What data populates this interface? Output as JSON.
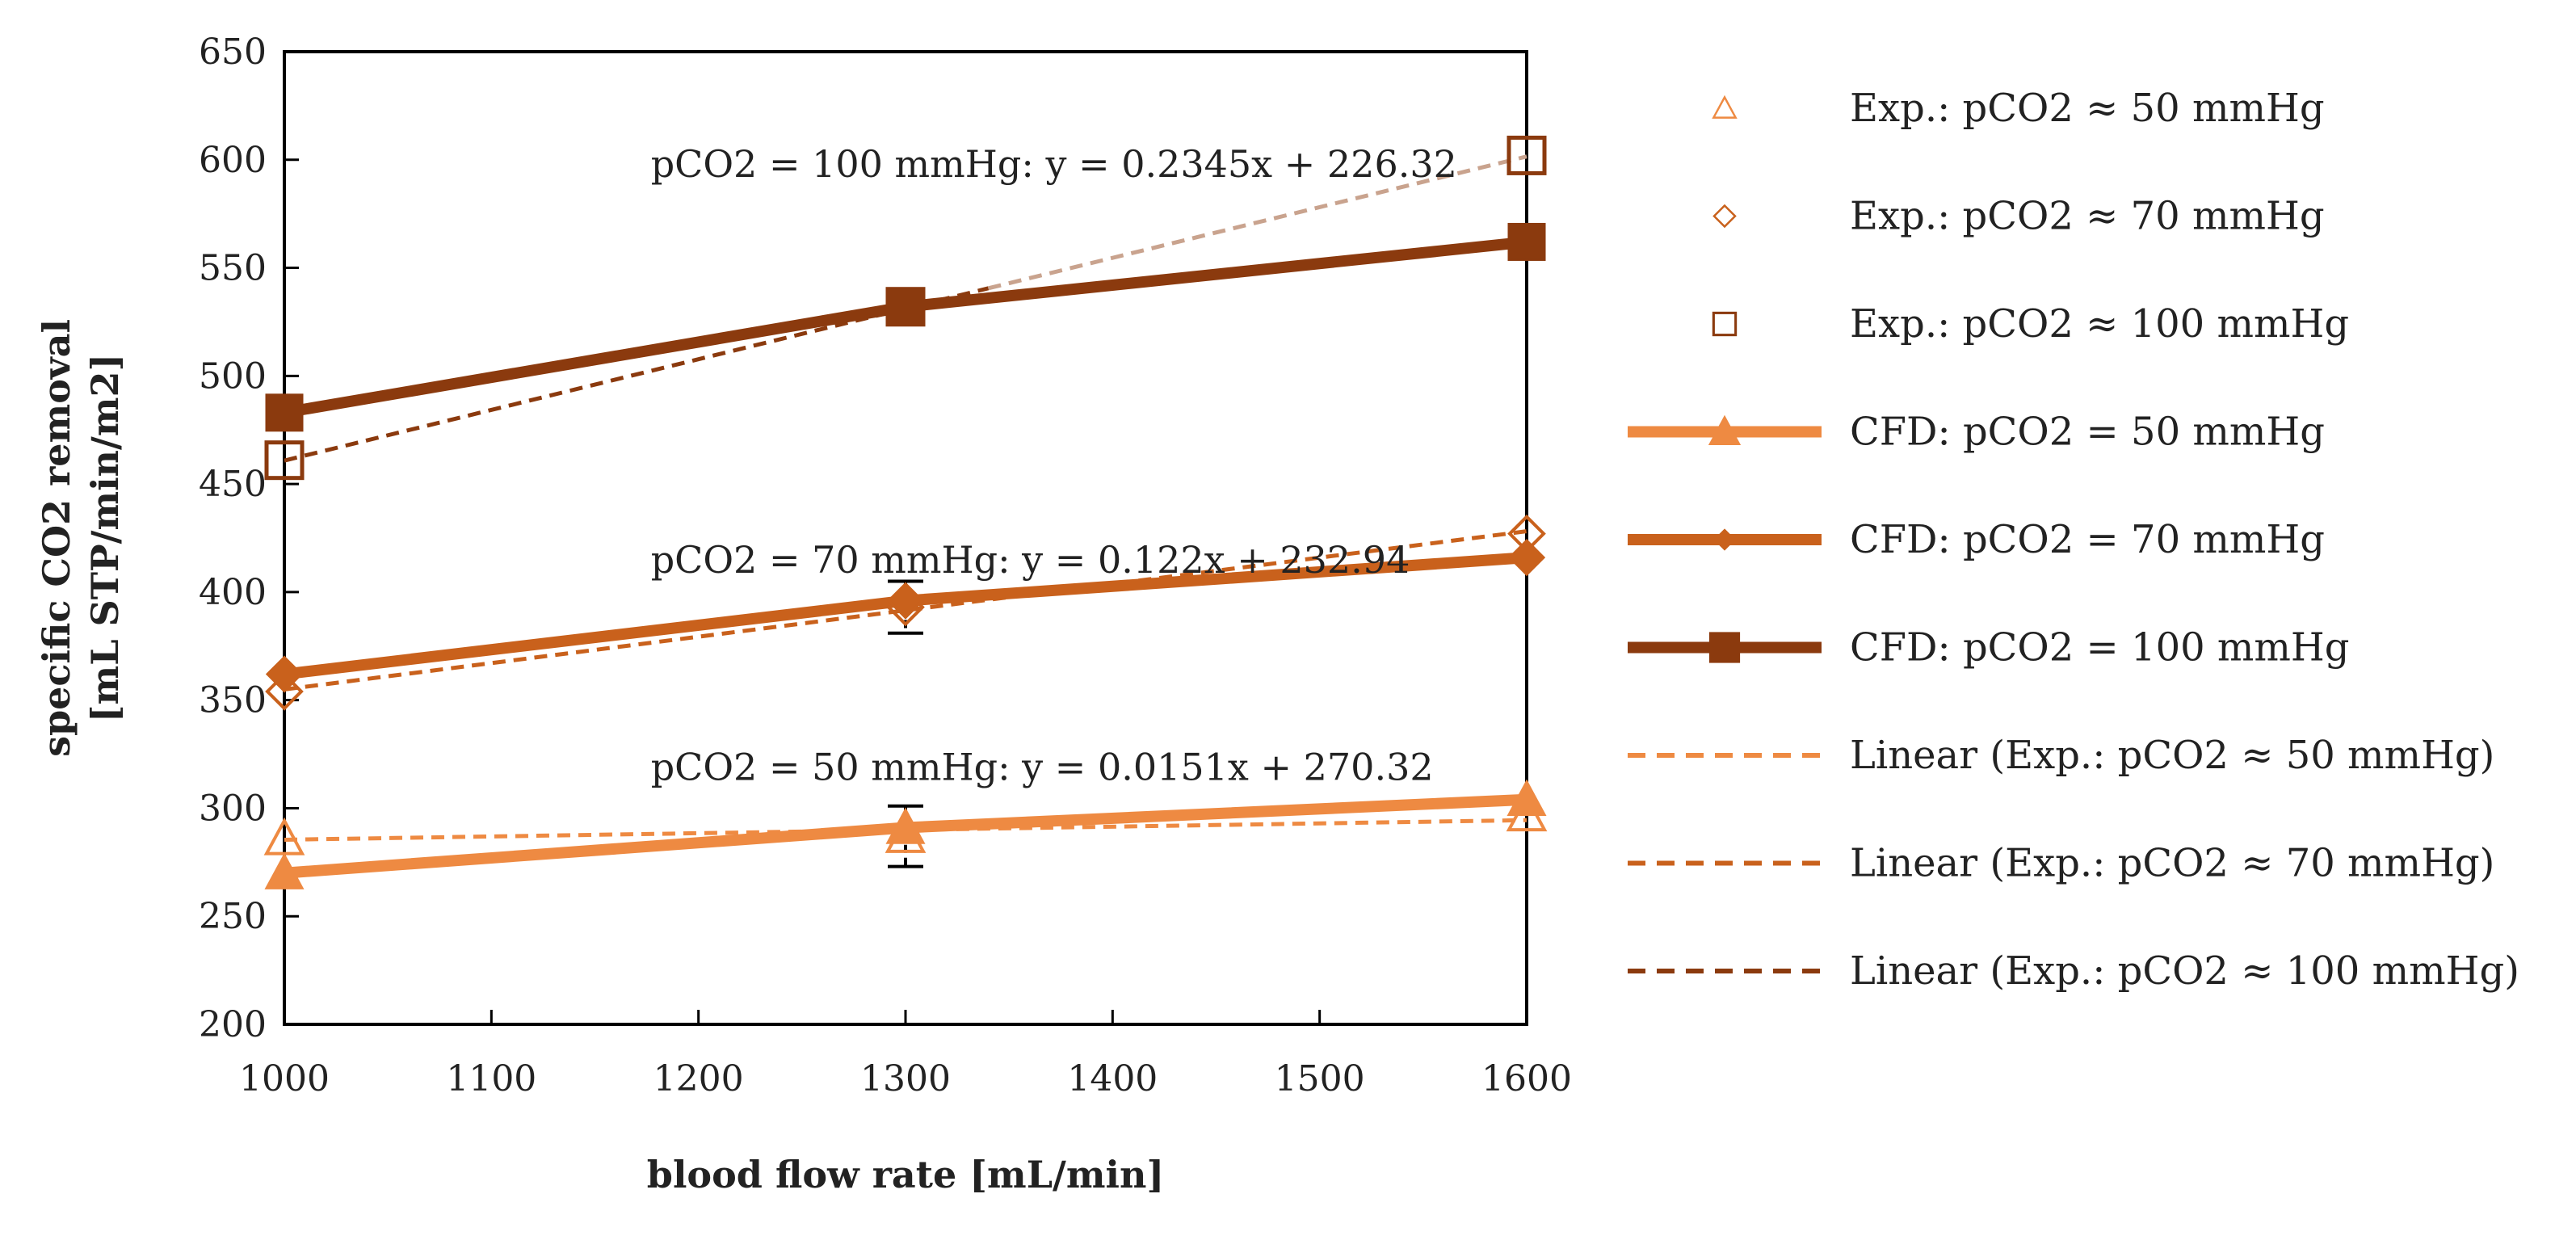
{
  "chart_data": {
    "type": "line",
    "xlabel": "blood flow rate [mL/min]",
    "ylabel_lines": [
      "specific CO2 removal",
      "[mL STP/min/m2]"
    ],
    "xlim": [
      1000,
      1600
    ],
    "ylim": [
      200,
      650
    ],
    "x_ticks": [
      "1000",
      "1100",
      "1200",
      "1300",
      "1400",
      "1500",
      "1600"
    ],
    "y_ticks": [
      "200",
      "250",
      "300",
      "350",
      "400",
      "450",
      "500",
      "550",
      "600",
      "650"
    ],
    "grid": false,
    "legend_position": "right",
    "colors": {
      "p50": "#EE8A42",
      "p70": "#C9611C",
      "p100": "#8B3A0E",
      "trend100_light": "#C9A38E"
    },
    "series": [
      {
        "name": "Exp.: pCO2 ≈ 50 mmHg",
        "kind": "exp",
        "marker": "triangle-open",
        "color": "#EE8A42",
        "x": [
          1000,
          1300,
          1600
        ],
        "y": [
          286,
          287,
          297
        ],
        "error": [
          0,
          14,
          0
        ]
      },
      {
        "name": "Exp.:  pCO2 ≈ 70 mmHg",
        "kind": "exp",
        "marker": "diamond-open",
        "color": "#C9611C",
        "x": [
          1000,
          1300,
          1600
        ],
        "y": [
          354,
          393,
          427
        ],
        "error": [
          0,
          12,
          0
        ]
      },
      {
        "name": "Exp.:  pCO2 ≈ 100 mmHg",
        "kind": "exp",
        "marker": "square-open",
        "color": "#8B3A0E",
        "x": [
          1000,
          1300,
          1600
        ],
        "y": [
          461,
          532,
          602
        ],
        "error": [
          0,
          8,
          0
        ]
      },
      {
        "name": "CFD: pCO2 = 50 mmHg",
        "kind": "cfd",
        "marker": "triangle",
        "color": "#EE8A42",
        "x": [
          1000,
          1300,
          1600
        ],
        "y": [
          270,
          291,
          304
        ]
      },
      {
        "name": "CFD: pCO2 = 70 mmHg",
        "kind": "cfd",
        "marker": "diamond",
        "color": "#C9611C",
        "x": [
          1000,
          1300,
          1600
        ],
        "y": [
          362,
          396,
          416
        ]
      },
      {
        "name": "CFD: pCO2 = 100 mmHg",
        "kind": "cfd",
        "marker": "square",
        "color": "#8B3A0E",
        "x": [
          1000,
          1300,
          1600
        ],
        "y": [
          483,
          532,
          562
        ]
      },
      {
        "name": "Linear (Exp.: pCO2 ≈ 50 mmHg)",
        "kind": "trend",
        "color": "#EE8A42",
        "x": [
          1000,
          1600
        ],
        "y": [
          285.42,
          294.48
        ]
      },
      {
        "name": "Linear (Exp.:  pCO2 ≈ 70 mmHg)",
        "kind": "trend",
        "color": "#C9611C",
        "x": [
          1000,
          1600
        ],
        "y": [
          354.94,
          428.14
        ]
      },
      {
        "name": "Linear (Exp.:  pCO2 ≈ 100 mmHg)",
        "kind": "trend",
        "color": "#8B3A0E",
        "x": [
          1000,
          1600
        ],
        "y": [
          460.82,
          601.52
        ]
      }
    ],
    "annotations": [
      {
        "text": "pCO2 = 100 mmHg: y = 0.2345x + 226.32",
        "x": 1177,
        "y": 592
      },
      {
        "text": "pCO2 = 70 mmHg: y = 0.122x + 232.94",
        "x": 1177,
        "y": 409
      },
      {
        "text": "pCO2 = 50 mmHg: y = 0.0151x + 270.32",
        "x": 1177,
        "y": 313
      }
    ]
  }
}
